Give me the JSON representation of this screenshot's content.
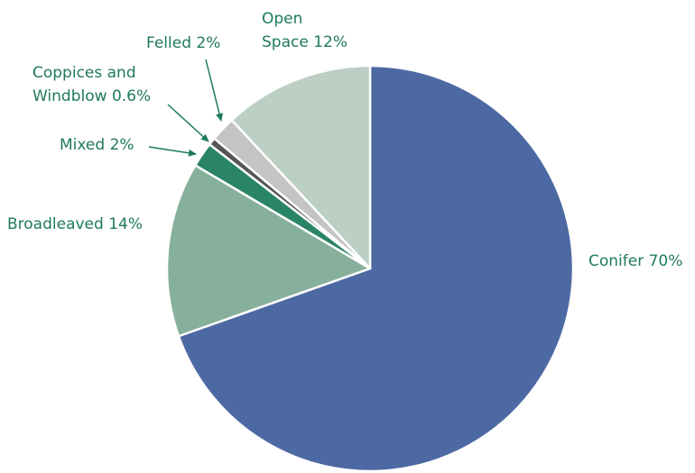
{
  "chart_data": {
    "type": "pie",
    "categories": [
      "Conifer",
      "Broadleaved",
      "Mixed",
      "Coppices and Windblow",
      "Felled",
      "Open Space"
    ],
    "values": [
      70,
      14,
      2,
      0.6,
      2,
      12
    ],
    "value_labels": [
      "70%",
      "14%",
      "2%",
      "0.6%",
      "2%",
      "12%"
    ],
    "colors": [
      "#4d69a3",
      "#86b09b",
      "#2a8468",
      "#555555",
      "#c4c4c4",
      "#bccfc4"
    ]
  }
}
